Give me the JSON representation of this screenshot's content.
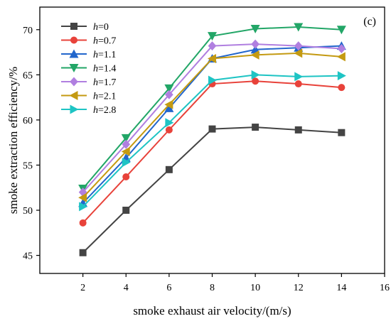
{
  "chart_data": {
    "type": "line",
    "panel_label": "(c)",
    "xlabel": "smoke exhaust air velocity/(m/s)",
    "ylabel": "smoke extraction efficiency/%",
    "xlim": [
      0,
      16
    ],
    "ylim": [
      43,
      72.5
    ],
    "xticks": [
      "2",
      "4",
      "6",
      "8",
      "10",
      "12",
      "14",
      "16"
    ],
    "yticks": [
      "45",
      "50",
      "55",
      "60",
      "65",
      "70"
    ],
    "x": [
      2,
      4,
      6,
      8,
      10,
      12,
      14
    ],
    "legend_position": "top-left",
    "series": [
      {
        "name_prefix": "h",
        "name_suffix": "=0",
        "color": "#444444",
        "marker": "square",
        "values": [
          45.3,
          50.0,
          54.5,
          59.0,
          59.2,
          58.9,
          58.6
        ]
      },
      {
        "name_prefix": "h",
        "name_suffix": "=0.7",
        "color": "#e8423a",
        "marker": "circle",
        "values": [
          48.6,
          53.7,
          58.9,
          64.0,
          64.3,
          64.0,
          63.6
        ]
      },
      {
        "name_prefix": "h",
        "name_suffix": "=1.1",
        "color": "#2266cc",
        "marker": "triangle-up",
        "values": [
          50.8,
          55.8,
          61.3,
          66.8,
          67.8,
          68.0,
          68.2
        ]
      },
      {
        "name_prefix": "h",
        "name_suffix": "=1.4",
        "color": "#22a667",
        "marker": "triangle-down",
        "values": [
          52.4,
          58.0,
          63.5,
          69.3,
          70.1,
          70.3,
          70.0
        ]
      },
      {
        "name_prefix": "h",
        "name_suffix": "=1.7",
        "color": "#b07fe0",
        "marker": "diamond",
        "values": [
          52.0,
          57.3,
          62.8,
          68.2,
          68.4,
          68.2,
          67.9
        ]
      },
      {
        "name_prefix": "h",
        "name_suffix": "=2.1",
        "color": "#c49a12",
        "marker": "triangle-left",
        "values": [
          51.4,
          56.5,
          61.7,
          66.8,
          67.2,
          67.4,
          67.0
        ]
      },
      {
        "name_prefix": "h",
        "name_suffix": "=2.8",
        "color": "#1ec4c4",
        "marker": "triangle-right",
        "values": [
          50.4,
          55.3,
          59.7,
          64.4,
          65.0,
          64.8,
          64.9
        ]
      }
    ]
  }
}
